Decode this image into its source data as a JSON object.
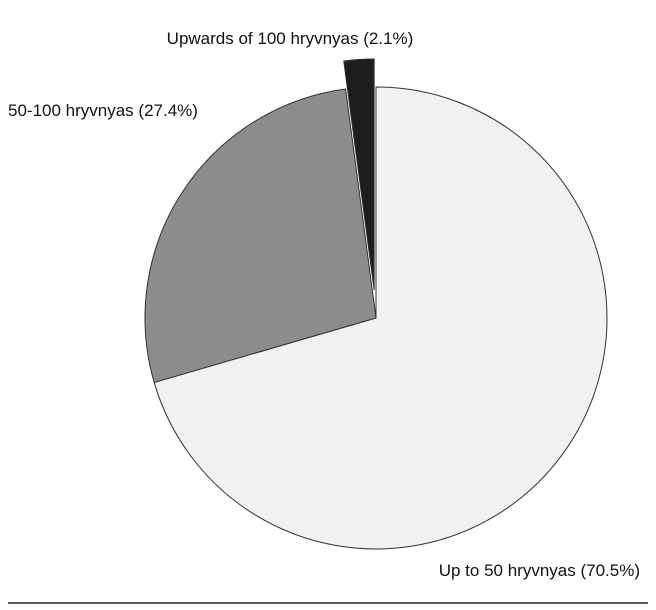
{
  "chart_data": {
    "type": "pie",
    "categories": [
      "Up to 50 hryvnyas",
      "50-100 hryvnyas",
      "Upwards of 100 hryvnyas"
    ],
    "values": [
      70.5,
      27.4,
      2.1
    ],
    "value_labels": [
      "(70.5%)",
      "(27.4%)",
      "(2.1%)"
    ],
    "colors": [
      "#f1f1f1",
      "#8c8c8c",
      "#1e1e1e"
    ]
  }
}
